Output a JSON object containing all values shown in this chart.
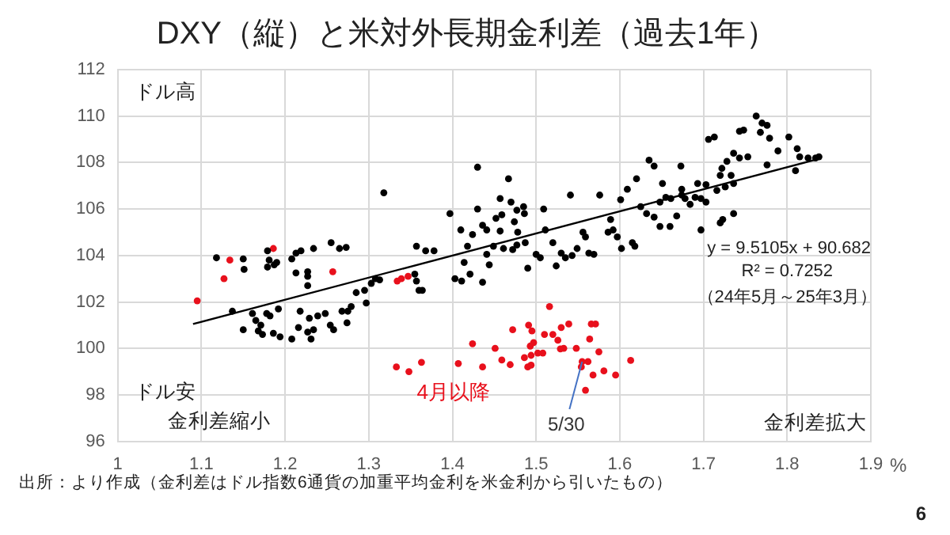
{
  "chart_data": {
    "type": "scatter",
    "title": "DXY（縦）と米対外長期金利差（過去1年）",
    "xlabel": "%",
    "xlim": [
      1,
      1.9
    ],
    "xticks": [
      1,
      1.1,
      1.2,
      1.3,
      1.4,
      1.5,
      1.6,
      1.7,
      1.8,
      1.9
    ],
    "ylim": [
      96,
      112
    ],
    "yticks": [
      96,
      98,
      100,
      102,
      104,
      106,
      108,
      110,
      112
    ],
    "grid": true,
    "legend": false,
    "marker": "circle",
    "series": [
      {
        "color": "#000000",
        "x": [
          1.118,
          1.15,
          1.151,
          1.137,
          1.15,
          1.161,
          1.165,
          1.171,
          1.168,
          1.173,
          1.178,
          1.182,
          1.192,
          1.186,
          1.194,
          1.179,
          1.181,
          1.187,
          1.179,
          1.19,
          1.208,
          1.213,
          1.219,
          1.234,
          1.213,
          1.227,
          1.227,
          1.227,
          1.255,
          1.265,
          1.273,
          1.218,
          1.229,
          1.234,
          1.227,
          1.216,
          1.208,
          1.231,
          1.239,
          1.248,
          1.258,
          1.254,
          1.268,
          1.275,
          1.274,
          1.279,
          1.285,
          1.295,
          1.297,
          1.303,
          1.308,
          1.313,
          1.318,
          1.355,
          1.357,
          1.36,
          1.364,
          1.357,
          1.368,
          1.378,
          1.397,
          1.403,
          1.411,
          1.421,
          1.414,
          1.436,
          1.444,
          1.441,
          1.418,
          1.424,
          1.41,
          1.43,
          1.43,
          1.436,
          1.441,
          1.452,
          1.459,
          1.457,
          1.467,
          1.47,
          1.477,
          1.474,
          1.485,
          1.486,
          1.478,
          1.457,
          1.449,
          1.461,
          1.472,
          1.477,
          1.487,
          1.49,
          1.5,
          1.505,
          1.509,
          1.511,
          1.52,
          1.524,
          1.53,
          1.541,
          1.535,
          1.543,
          1.549,
          1.556,
          1.559,
          1.563,
          1.569,
          1.576,
          1.586,
          1.589,
          1.592,
          1.597,
          1.601,
          1.602,
          1.615,
          1.618,
          1.609,
          1.62,
          1.635,
          1.641,
          1.625,
          1.632,
          1.641,
          1.648,
          1.651,
          1.655,
          1.661,
          1.673,
          1.674,
          1.648,
          1.66,
          1.668,
          1.763,
          1.77,
          1.776,
          1.768,
          1.748,
          1.743,
          1.713,
          1.706,
          1.802,
          1.779,
          1.789,
          1.812,
          1.815,
          1.825,
          1.834,
          1.838,
          1.81,
          1.776,
          1.753,
          1.743,
          1.736,
          1.728,
          1.722,
          1.72,
          1.733,
          1.736,
          1.726,
          1.716,
          1.703,
          1.697,
          1.703,
          1.69,
          1.678,
          1.674,
          1.736,
          1.723,
          1.72,
          1.697,
          1.684,
          1.693
        ],
        "values": [
          103.9,
          103.85,
          103.4,
          101.6,
          100.8,
          101.5,
          101.2,
          101.0,
          100.75,
          100.6,
          101.5,
          101.4,
          101.7,
          100.65,
          100.5,
          104.2,
          103.8,
          103.6,
          103.5,
          103.7,
          103.85,
          104.1,
          104.2,
          104.3,
          103.25,
          103.3,
          103.1,
          102.7,
          104.55,
          104.3,
          104.35,
          101.6,
          101.3,
          100.8,
          100.7,
          100.9,
          100.4,
          100.4,
          101.4,
          101.5,
          100.8,
          101.0,
          101.6,
          101.6,
          101.1,
          101.8,
          102.4,
          102.5,
          101.95,
          102.8,
          103.0,
          102.95,
          106.7,
          103.2,
          102.9,
          102.5,
          102.5,
          104.4,
          104.2,
          104.2,
          105.8,
          103.0,
          102.9,
          103.2,
          103.7,
          102.85,
          103.6,
          104.05,
          104.4,
          104.9,
          105.1,
          107.8,
          106.0,
          105.3,
          105.1,
          105.6,
          105.75,
          106.45,
          107.3,
          106.3,
          105.95,
          105.45,
          106.1,
          105.8,
          105.0,
          105.05,
          104.4,
          104.3,
          104.25,
          104.45,
          104.55,
          103.45,
          104.05,
          103.9,
          106.0,
          105.1,
          104.55,
          103.55,
          104.1,
          106.6,
          103.9,
          104.0,
          104.3,
          105.0,
          104.8,
          104.1,
          104.05,
          106.6,
          105.0,
          105.55,
          105.1,
          104.8,
          106.4,
          104.3,
          104.55,
          104.4,
          106.85,
          107.3,
          108.1,
          107.85,
          106.1,
          105.8,
          105.65,
          106.3,
          107.1,
          106.5,
          106.45,
          107.85,
          106.85,
          105.25,
          105.25,
          105.7,
          110.0,
          109.7,
          109.6,
          109.3,
          109.4,
          109.35,
          109.1,
          109.0,
          109.1,
          109.05,
          108.5,
          108.6,
          108.25,
          108.2,
          108.2,
          108.25,
          107.65,
          107.9,
          108.25,
          108.2,
          108.4,
          108.05,
          107.75,
          107.45,
          107.45,
          107.1,
          106.95,
          106.8,
          107.05,
          106.45,
          106.3,
          106.5,
          106.45,
          106.6,
          105.8,
          105.55,
          105.4,
          105.1,
          106.2,
          107.1
        ]
      },
      {
        "name": "4月以降",
        "color": "#e8101c",
        "x": [
          1.095,
          1.134,
          1.127,
          1.186,
          1.257,
          1.334,
          1.339,
          1.347,
          1.516,
          1.472,
          1.491,
          1.495,
          1.51,
          1.52,
          1.53,
          1.539,
          1.566,
          1.564,
          1.533,
          1.451,
          1.424,
          1.497,
          1.548,
          1.526,
          1.529,
          1.508,
          1.494,
          1.494,
          1.493,
          1.571,
          1.575,
          1.562,
          1.555,
          1.554,
          1.568,
          1.581,
          1.595,
          1.613,
          1.559,
          1.333,
          1.348,
          1.363,
          1.407,
          1.436,
          1.459,
          1.469,
          1.486,
          1.49,
          1.502
        ],
        "values": [
          102.05,
          103.8,
          103.0,
          104.3,
          103.3,
          102.9,
          103.0,
          103.1,
          101.8,
          100.8,
          101.0,
          100.75,
          100.6,
          100.6,
          100.9,
          101.05,
          101.05,
          100.4,
          100.0,
          100.0,
          100.2,
          100.25,
          100.0,
          100.35,
          99.98,
          99.8,
          99.7,
          99.28,
          100.1,
          101.05,
          99.85,
          99.43,
          99.43,
          99.2,
          98.85,
          99.03,
          98.85,
          99.48,
          98.2,
          99.2,
          99.0,
          99.4,
          99.35,
          99.2,
          99.5,
          99.3,
          99.6,
          99.2,
          99.8
        ]
      },
      {
        "type": "line",
        "marker": "none",
        "color": "#000000",
        "x": [
          1.09,
          1.84
        ],
        "values": [
          101.05,
          108.18
        ]
      }
    ],
    "annotations": [
      "ドル高",
      "ドル安",
      "金利差縮小",
      "金利差拡大",
      "y = 9.5105x + 90.682",
      "R² = 0.7252",
      "（24年5月～25年3月）",
      "出所：より作成（金利差はドル指数6通貨の加重平均金利を米金利から引いたもの）",
      "6",
      {
        "text": "5/30",
        "x": 1.555,
        "y": 99.43
      }
    ]
  }
}
